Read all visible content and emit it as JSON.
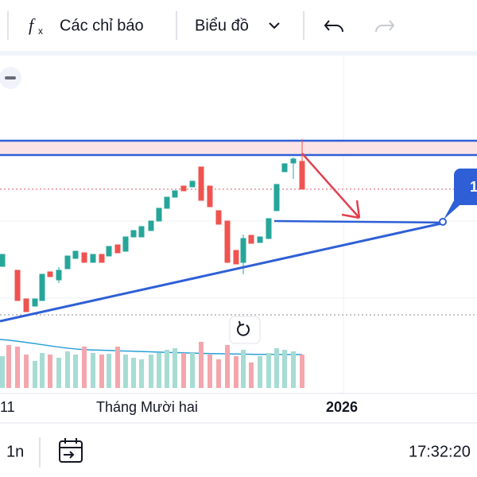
{
  "toolbar": {
    "indicators": "Các chỉ báo",
    "chart_type": "Biểu đồ"
  },
  "chart": {
    "badge": "1",
    "x_labels": [
      "11",
      "Tháng Mười hai",
      "2026"
    ]
  },
  "footer": {
    "interval": "1n",
    "clock": "17:32:20"
  }
}
